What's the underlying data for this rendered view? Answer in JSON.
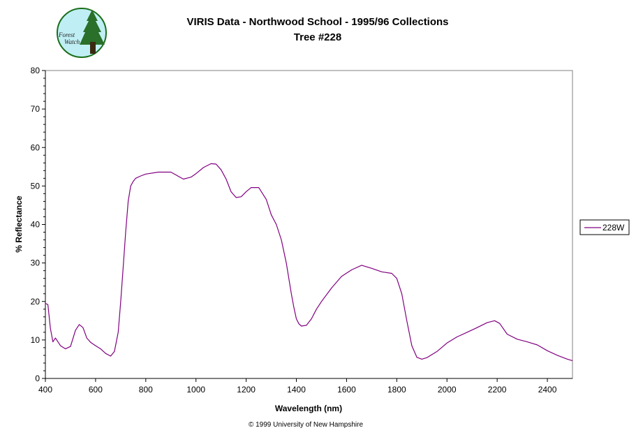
{
  "logo": {
    "line1": "Forest",
    "line2": "Watch",
    "colors": {
      "ring": "#1b6e1b",
      "sky": "#bfeff4",
      "tree": "#2a6f2a",
      "trunk": "#3b2a12"
    }
  },
  "copyright": "© 1999 University of New Hampshire",
  "chart_data": {
    "type": "line",
    "title": "VIRIS Data - Northwood School - 1995/96 Collections",
    "subtitle": "Tree #228",
    "xlabel": "Wavelength (nm)",
    "ylabel": "% Reflectance",
    "xlim": [
      400,
      2500
    ],
    "ylim": [
      0,
      80
    ],
    "xticks": [
      400,
      600,
      800,
      1000,
      1200,
      1400,
      1600,
      1800,
      2000,
      2200,
      2400
    ],
    "yticks": [
      0,
      10,
      20,
      30,
      40,
      50,
      60,
      70,
      80
    ],
    "grid": false,
    "legend_position": "right",
    "series": [
      {
        "name": "228W",
        "color": "#800080",
        "x": [
          400,
          410,
          420,
          430,
          440,
          460,
          480,
          500,
          520,
          535,
          550,
          565,
          580,
          600,
          620,
          640,
          660,
          675,
          690,
          700,
          710,
          720,
          730,
          740,
          750,
          760,
          780,
          800,
          850,
          900,
          950,
          980,
          1000,
          1030,
          1060,
          1080,
          1100,
          1120,
          1140,
          1160,
          1180,
          1200,
          1220,
          1250,
          1280,
          1300,
          1320,
          1340,
          1360,
          1380,
          1390,
          1400,
          1410,
          1420,
          1440,
          1460,
          1480,
          1500,
          1540,
          1580,
          1620,
          1660,
          1700,
          1740,
          1780,
          1800,
          1820,
          1840,
          1860,
          1880,
          1900,
          1920,
          1960,
          2000,
          2040,
          2080,
          2120,
          2160,
          2190,
          2210,
          2240,
          2280,
          2320,
          2360,
          2400,
          2440,
          2480,
          2500
        ],
        "values": [
          19.5,
          19.2,
          13,
          9.5,
          10.5,
          8.5,
          7.7,
          8.3,
          12.5,
          14,
          13.2,
          10.5,
          9.4,
          8.5,
          7.7,
          6.5,
          5.8,
          7,
          12,
          20,
          29,
          38,
          46,
          50,
          51.2,
          52,
          52.6,
          53.1,
          53.6,
          53.6,
          51.8,
          52.3,
          53.2,
          54.8,
          55.8,
          55.7,
          54.2,
          51.8,
          48.5,
          47,
          47.2,
          48.5,
          49.6,
          49.6,
          46.5,
          42.5,
          40,
          36,
          30,
          22,
          18.5,
          15.5,
          14.2,
          13.6,
          13.8,
          15.5,
          18,
          20,
          23.5,
          26.5,
          28.2,
          29.4,
          28.6,
          27.7,
          27.3,
          26,
          22,
          15,
          8.5,
          5.5,
          5,
          5.4,
          7,
          9.2,
          10.8,
          12,
          13.2,
          14.5,
          15,
          14.3,
          11.5,
          10.2,
          9.5,
          8.7,
          7.2,
          6,
          5,
          4.6
        ]
      }
    ]
  }
}
